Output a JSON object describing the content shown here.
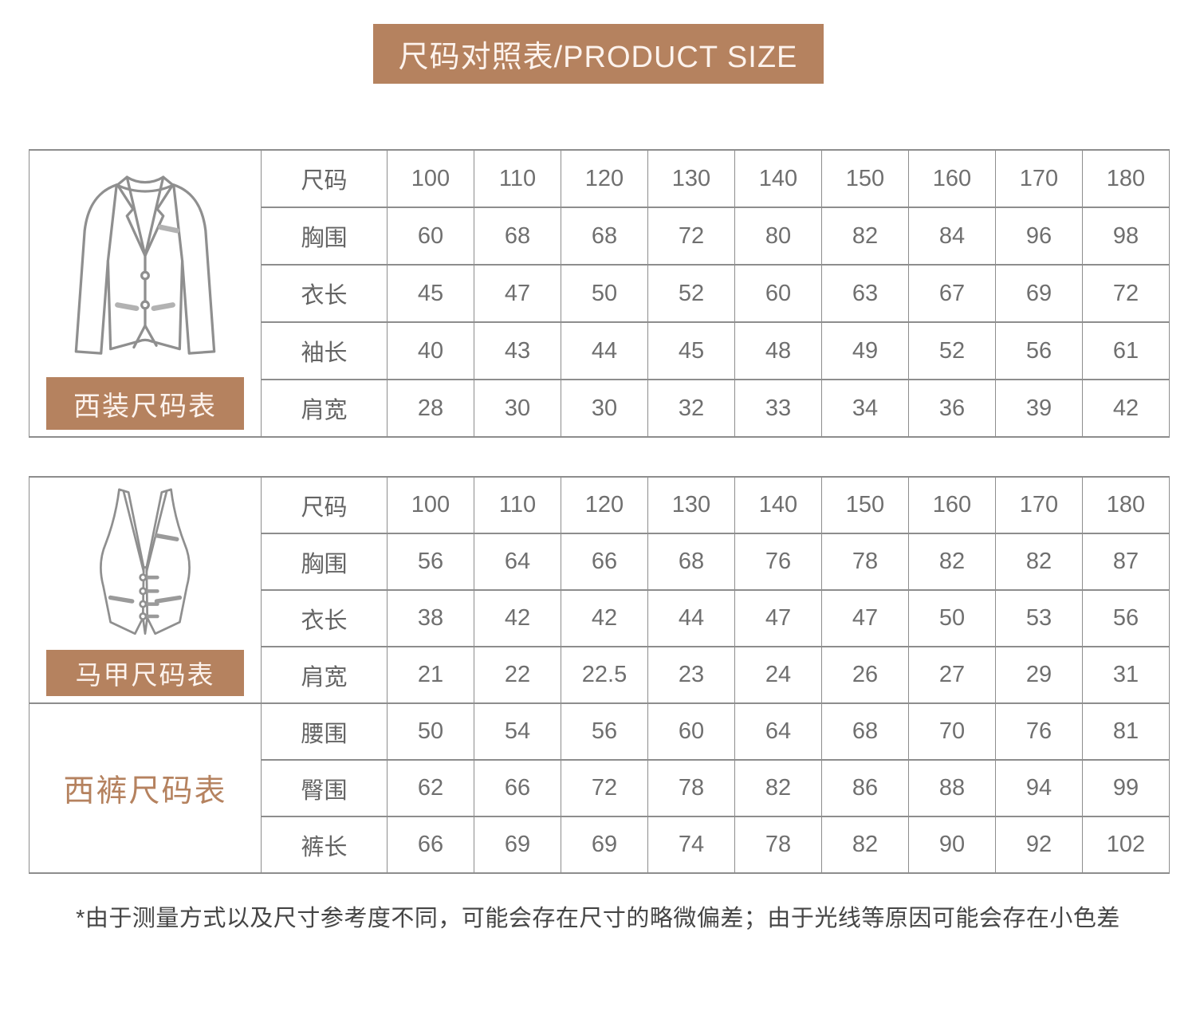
{
  "header": {
    "title": "尺码对照表/PRODUCT SIZE"
  },
  "colors": {
    "accent_brown": "#b5825f",
    "border_gray": "#8d8d8d",
    "cell_text_gray": "#6f6f6f",
    "badge_text": "#fdf3ed"
  },
  "suit_table": {
    "badge_label": "西装尺码表",
    "illustration": "suit-jacket-line-drawing",
    "rows": [
      {
        "label": "尺码",
        "values": [
          "100",
          "110",
          "120",
          "130",
          "140",
          "150",
          "160",
          "170",
          "180"
        ]
      },
      {
        "label": "胸围",
        "values": [
          "60",
          "68",
          "68",
          "72",
          "80",
          "82",
          "84",
          "96",
          "98"
        ]
      },
      {
        "label": "衣长",
        "values": [
          "45",
          "47",
          "50",
          "52",
          "60",
          "63",
          "67",
          "69",
          "72"
        ]
      },
      {
        "label": "袖长",
        "values": [
          "40",
          "43",
          "44",
          "45",
          "48",
          "49",
          "52",
          "56",
          "61"
        ]
      },
      {
        "label": "肩宽",
        "values": [
          "28",
          "30",
          "30",
          "32",
          "33",
          "34",
          "36",
          "39",
          "42"
        ]
      }
    ]
  },
  "vest_pants_table": {
    "vest_badge_label": "马甲尺码表",
    "vest_illustration": "vest-line-drawing",
    "pants_label": "西裤尺码表",
    "vest_rows": [
      {
        "label": "尺码",
        "values": [
          "100",
          "110",
          "120",
          "130",
          "140",
          "150",
          "160",
          "170",
          "180"
        ]
      },
      {
        "label": "胸围",
        "values": [
          "56",
          "64",
          "66",
          "68",
          "76",
          "78",
          "82",
          "82",
          "87"
        ]
      },
      {
        "label": "衣长",
        "values": [
          "38",
          "42",
          "42",
          "44",
          "47",
          "47",
          "50",
          "53",
          "56"
        ]
      },
      {
        "label": "肩宽",
        "values": [
          "21",
          "22",
          "22.5",
          "23",
          "24",
          "26",
          "27",
          "29",
          "31"
        ]
      }
    ],
    "pants_rows": [
      {
        "label": "腰围",
        "values": [
          "50",
          "54",
          "56",
          "60",
          "64",
          "68",
          "70",
          "76",
          "81"
        ]
      },
      {
        "label": "臀围",
        "values": [
          "62",
          "66",
          "72",
          "78",
          "82",
          "86",
          "88",
          "94",
          "99"
        ]
      },
      {
        "label": "裤长",
        "values": [
          "66",
          "69",
          "69",
          "74",
          "78",
          "82",
          "90",
          "92",
          "102"
        ]
      }
    ]
  },
  "footnote": "*由于测量方式以及尺寸参考度不同，可能会存在尺寸的略微偏差；由于光线等原因可能会存在小色差"
}
